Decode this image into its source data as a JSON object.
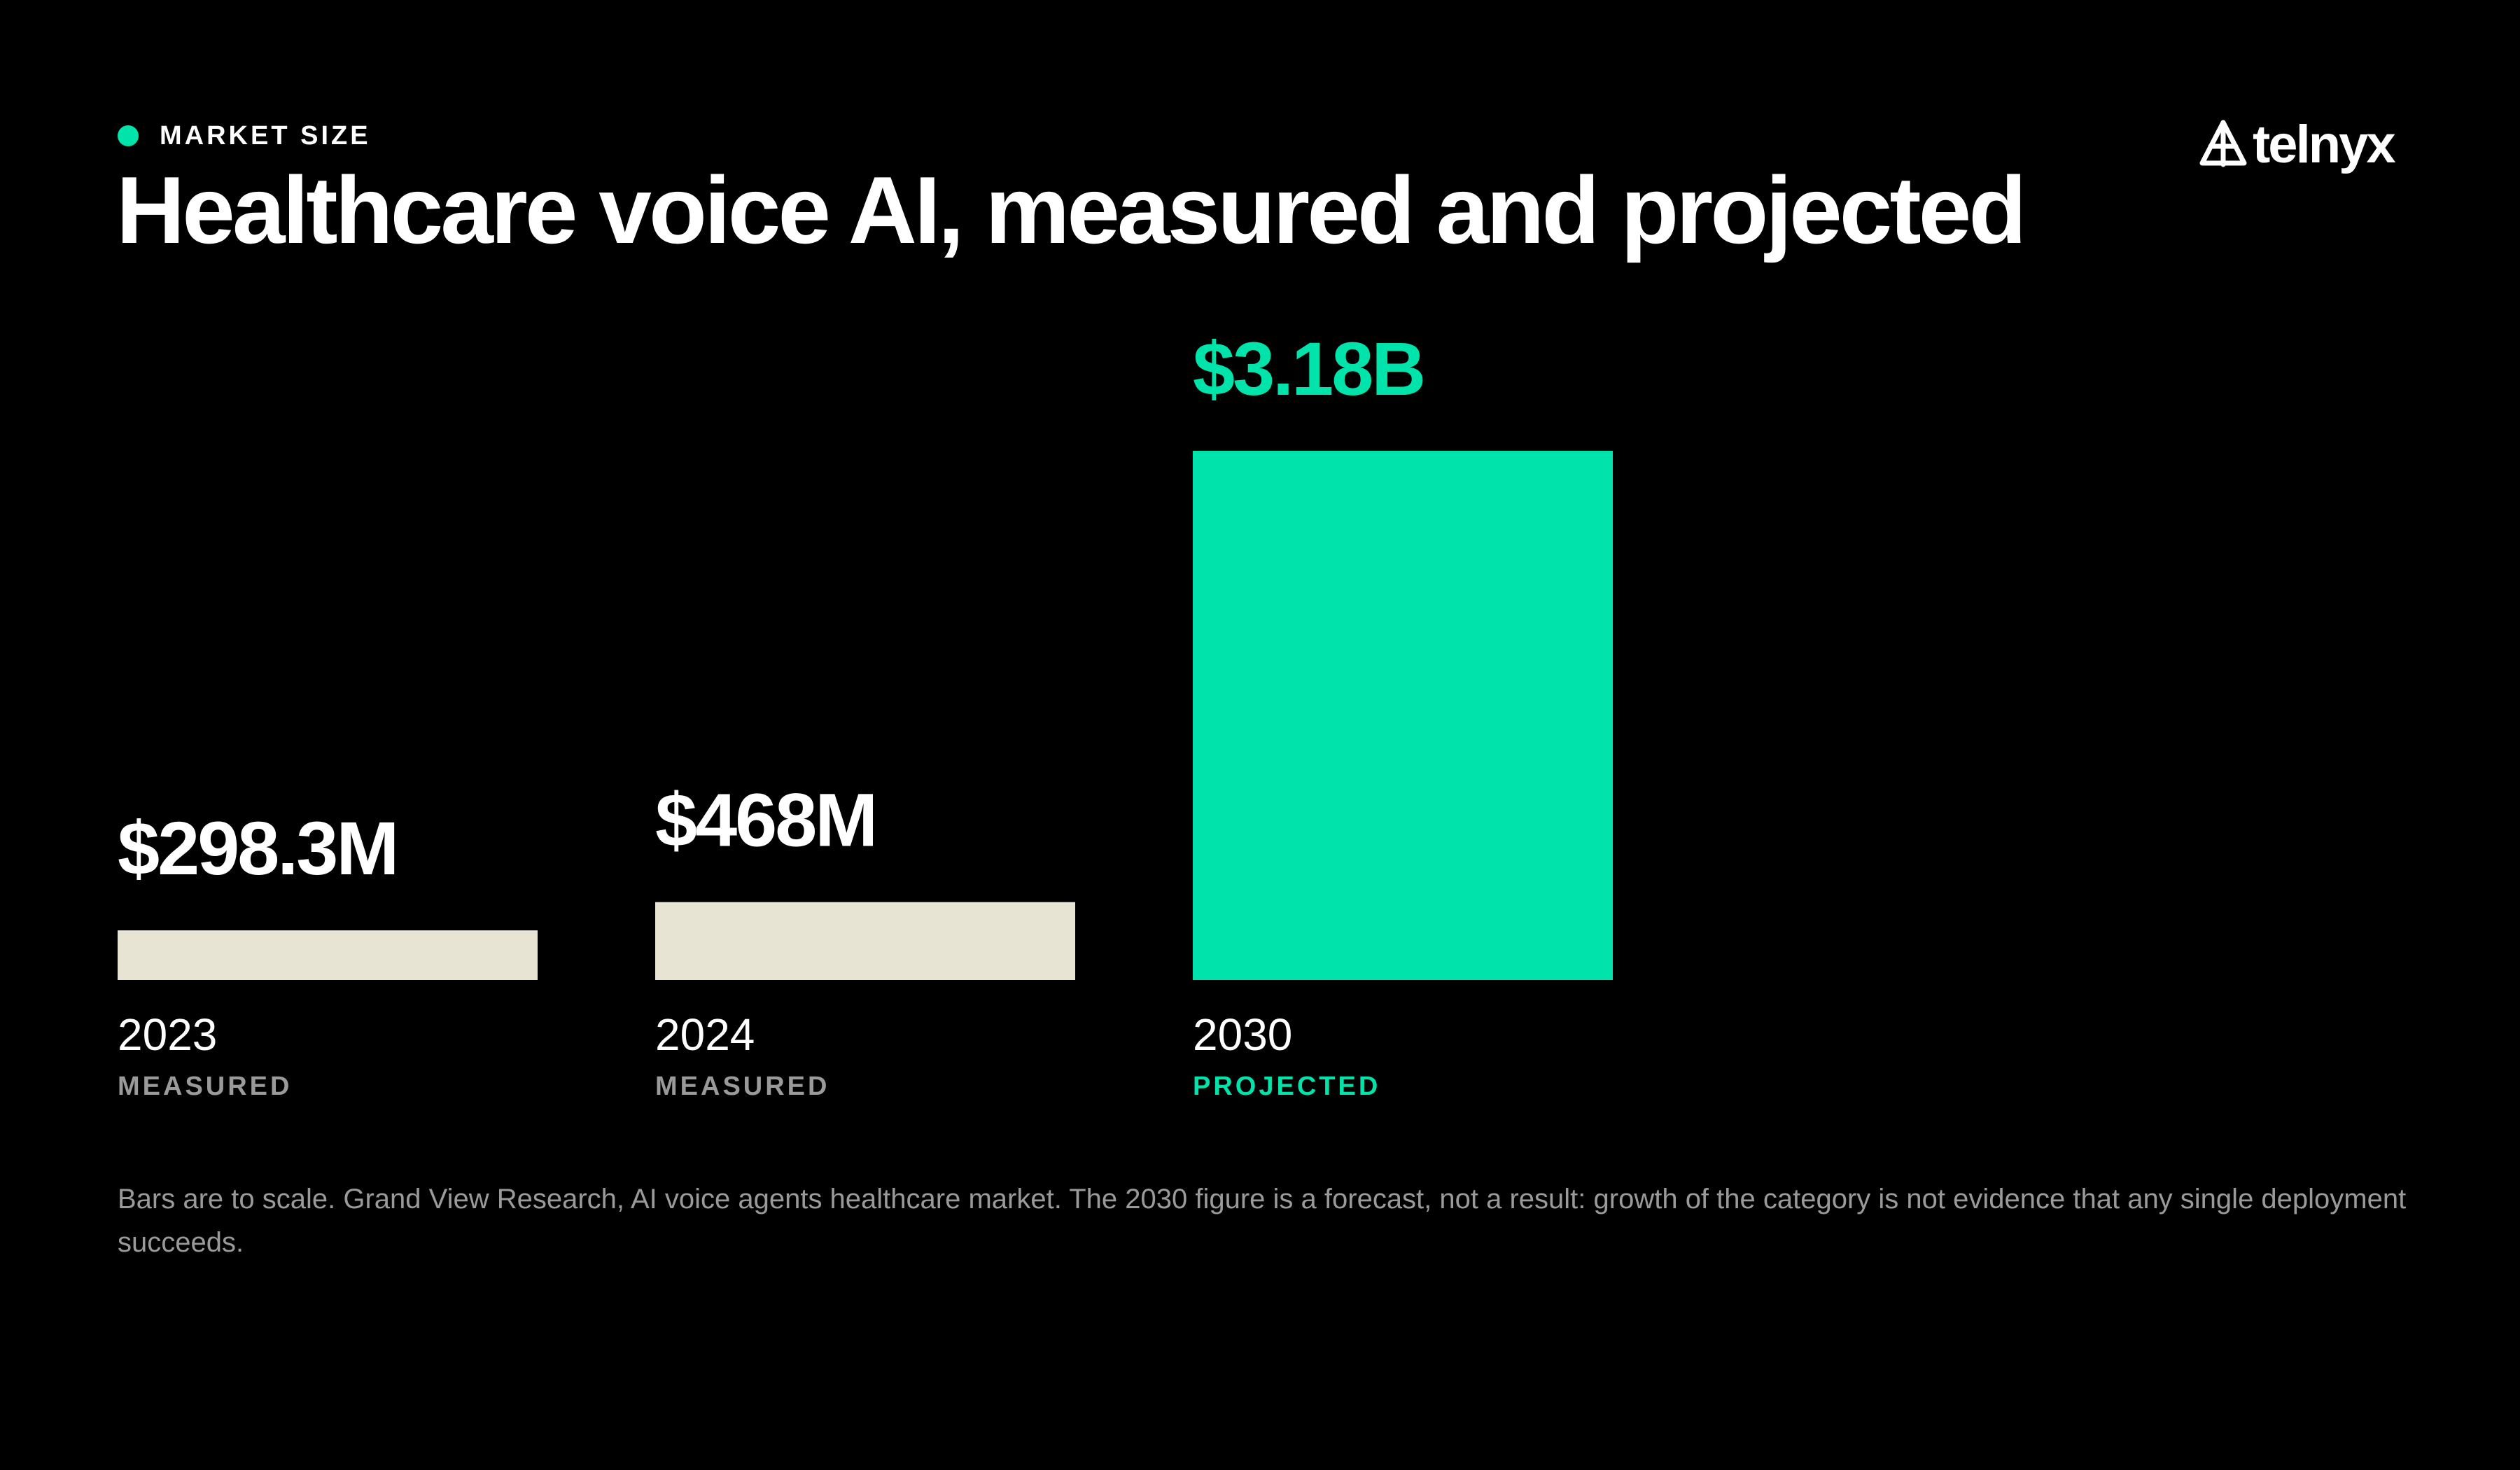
{
  "header": {
    "eyebrow": "MARKET SIZE",
    "title": "Healthcare voice AI, measured and projected"
  },
  "logo": {
    "text": "telnyx",
    "icon": "telnyx-logo-icon"
  },
  "chart_data": {
    "type": "bar",
    "categories": [
      "2023",
      "2024",
      "2030"
    ],
    "values": [
      298.3,
      468,
      3180
    ],
    "units": "USD millions",
    "data_labels": [
      "$298.3M",
      "$468M",
      "$3.18B"
    ],
    "status": [
      "MEASURED",
      "MEASURED",
      "PROJECTED"
    ],
    "ylim": [
      0,
      3180
    ],
    "grid": false,
    "legend": "none",
    "colors": {
      "measured": "#e8e4d4",
      "projected": "#00e3aa",
      "status_measured": "#9a9a9a",
      "status_projected": "#00e3aa"
    }
  },
  "footnote": "Bars are to scale. Grand View Research, AI voice agents healthcare market. The 2030 figure is a forecast, not a result: growth of the category is not evidence that any single deployment succeeds."
}
